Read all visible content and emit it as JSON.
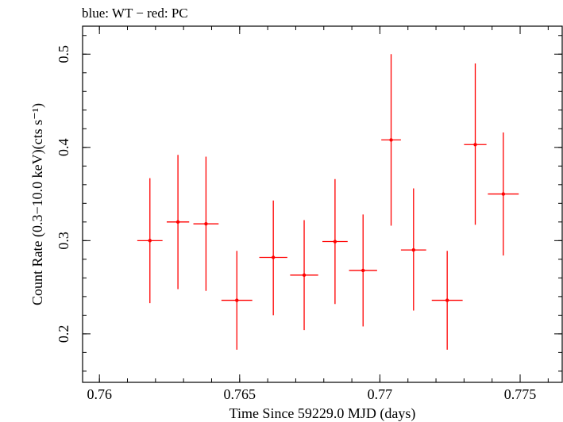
{
  "header": "blue: WT − red: PC",
  "chart_data": {
    "type": "scatter",
    "title": "",
    "xlabel": "Time Since 59229.0 MJD (days)",
    "ylabel": "Count Rate (0.3−10.0 keV)(cts s⁻¹)",
    "xlim": [
      0.7594,
      0.7765
    ],
    "ylim": [
      0.148,
      0.53
    ],
    "x_ticks": [
      0.76,
      0.765,
      0.77,
      0.775
    ],
    "x_tick_labels": [
      "0.76",
      "0.765",
      "0.77",
      "0.775"
    ],
    "y_ticks": [
      0.2,
      0.3,
      0.4,
      0.5
    ],
    "y_tick_labels": [
      "0.2",
      "0.3",
      "0.4",
      "0.5"
    ],
    "grid": false,
    "series": [
      {
        "color": "#ff0000",
        "points": [
          {
            "x": 0.7618,
            "xerr": 0.00045,
            "y": 0.3,
            "ylo": 0.233,
            "yhi": 0.367
          },
          {
            "x": 0.7628,
            "xerr": 0.0004,
            "y": 0.32,
            "ylo": 0.248,
            "yhi": 0.392
          },
          {
            "x": 0.7638,
            "xerr": 0.00045,
            "y": 0.318,
            "ylo": 0.246,
            "yhi": 0.39
          },
          {
            "x": 0.7649,
            "xerr": 0.00055,
            "y": 0.236,
            "ylo": 0.183,
            "yhi": 0.289
          },
          {
            "x": 0.7662,
            "xerr": 0.0005,
            "y": 0.282,
            "ylo": 0.22,
            "yhi": 0.343
          },
          {
            "x": 0.7673,
            "xerr": 0.0005,
            "y": 0.263,
            "ylo": 0.204,
            "yhi": 0.322
          },
          {
            "x": 0.7684,
            "xerr": 0.00045,
            "y": 0.299,
            "ylo": 0.232,
            "yhi": 0.366
          },
          {
            "x": 0.7694,
            "xerr": 0.0005,
            "y": 0.268,
            "ylo": 0.208,
            "yhi": 0.328
          },
          {
            "x": 0.7704,
            "xerr": 0.00035,
            "y": 0.408,
            "ylo": 0.316,
            "yhi": 0.5
          },
          {
            "x": 0.7712,
            "xerr": 0.00045,
            "y": 0.29,
            "ylo": 0.225,
            "yhi": 0.356
          },
          {
            "x": 0.7724,
            "xerr": 0.00055,
            "y": 0.236,
            "ylo": 0.183,
            "yhi": 0.289
          },
          {
            "x": 0.7734,
            "xerr": 0.0004,
            "y": 0.403,
            "ylo": 0.317,
            "yhi": 0.49
          },
          {
            "x": 0.7744,
            "xerr": 0.00055,
            "y": 0.35,
            "ylo": 0.284,
            "yhi": 0.416
          }
        ]
      }
    ]
  }
}
